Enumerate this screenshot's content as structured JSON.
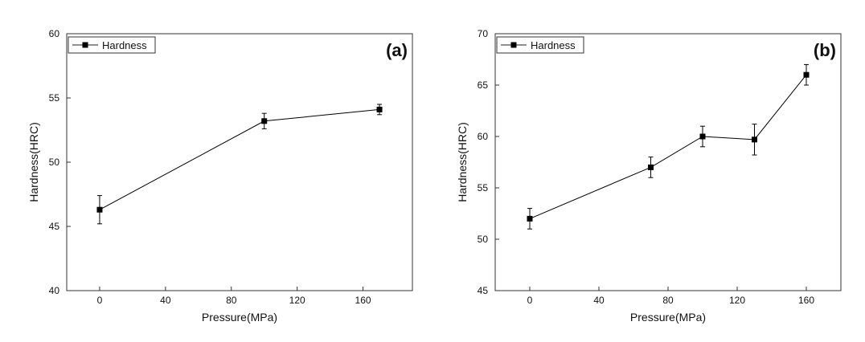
{
  "chart_data": [
    {
      "type": "line",
      "panel_label": "(a)",
      "xlabel": "Pressure(MPa)",
      "ylabel": "Hardness(HRC)",
      "xlim": [
        -20,
        190
      ],
      "ylim": [
        40,
        60
      ],
      "xticks": [
        0,
        40,
        80,
        120,
        160
      ],
      "yticks": [
        40,
        45,
        50,
        55,
        60
      ],
      "grid": false,
      "legend_position": "top-left",
      "series": [
        {
          "name": "Hardness",
          "x": [
            0,
            100,
            170
          ],
          "y": [
            46.3,
            53.2,
            54.1
          ],
          "error": [
            1.1,
            0.6,
            0.4
          ],
          "color": "#000000"
        }
      ]
    },
    {
      "type": "line",
      "panel_label": "(b)",
      "xlabel": "Pressure(MPa)",
      "ylabel": "Hardness(HRC)",
      "xlim": [
        -20,
        180
      ],
      "ylim": [
        45,
        70
      ],
      "xticks": [
        0,
        40,
        80,
        120,
        160
      ],
      "yticks": [
        45,
        50,
        55,
        60,
        65,
        70
      ],
      "grid": false,
      "legend_position": "top-left",
      "series": [
        {
          "name": "Hardness",
          "x": [
            0,
            70,
            100,
            130,
            160
          ],
          "y": [
            52.0,
            57.0,
            60.0,
            59.7,
            66.0
          ],
          "error": [
            1.0,
            1.0,
            1.0,
            1.5,
            1.0
          ],
          "color": "#000000"
        }
      ]
    }
  ]
}
